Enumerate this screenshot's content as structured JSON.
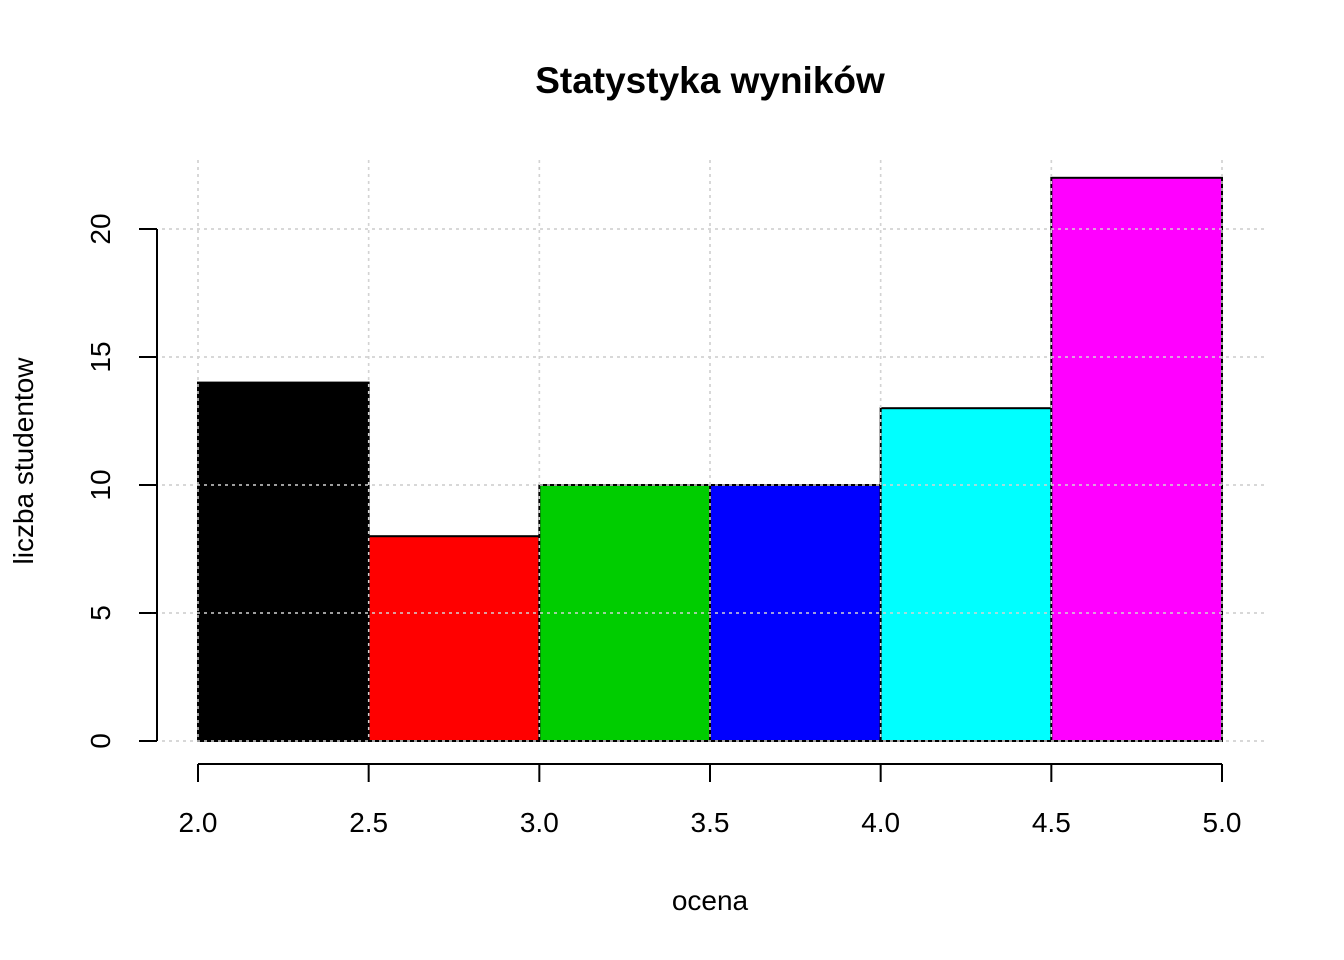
{
  "chart_data": {
    "type": "bar",
    "title": "Statystyka wyników",
    "xlabel": "ocena",
    "ylabel": "liczba studentow",
    "bins": [
      {
        "from": 2.0,
        "to": 2.5,
        "count": 14,
        "color": "#000000"
      },
      {
        "from": 2.5,
        "to": 3.0,
        "count": 8,
        "color": "#ff0000"
      },
      {
        "from": 3.0,
        "to": 3.5,
        "count": 10,
        "color": "#00cd00"
      },
      {
        "from": 3.5,
        "to": 4.0,
        "count": 10,
        "color": "#0000ff"
      },
      {
        "from": 4.0,
        "to": 4.5,
        "count": 13,
        "color": "#00ffff"
      },
      {
        "from": 4.5,
        "to": 5.0,
        "count": 22,
        "color": "#ff00ff"
      }
    ],
    "x_ticks": [
      "2.0",
      "2.5",
      "3.0",
      "3.5",
      "4.0",
      "4.5",
      "5.0"
    ],
    "y_ticks": [
      "0",
      "5",
      "10",
      "15",
      "20"
    ],
    "xlim": [
      2.0,
      5.0
    ],
    "ylim": [
      0,
      22
    ],
    "grid": true,
    "legend": "none"
  }
}
